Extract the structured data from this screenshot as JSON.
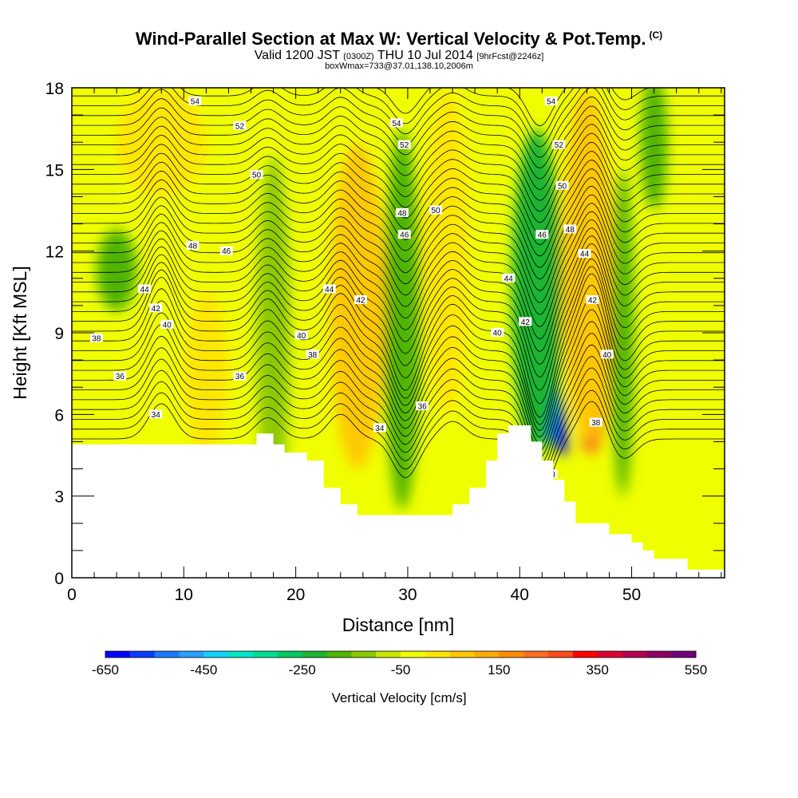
{
  "header": {
    "title": "Wind-Parallel Section at Max W: Vertical Velocity & Pot.Temp.",
    "copyright": "(C)",
    "valid_prefix": "Valid 1200 JST",
    "valid_utc": "(0300Z)",
    "valid_date": "THU 10 Jul 2014",
    "forecast": "[9hrFcst@2246z]",
    "boxinfo": "boxWmax=733@37.01,138.10,2006m"
  },
  "chart_data": {
    "type": "heatmap",
    "xlabel": "Distance [nm]",
    "ylabel": "Height [Kft MSL]",
    "xlim": [
      0,
      58.3
    ],
    "ylim": [
      0,
      18
    ],
    "x_ticks": [
      0,
      10,
      20,
      30,
      40,
      50
    ],
    "y_ticks": [
      0,
      3,
      6,
      9,
      12,
      15,
      18
    ],
    "colorbar": {
      "label": "Vertical Velocity [cm/s]",
      "tick_labels": [
        "-650",
        "-450",
        "-250",
        "-50",
        "150",
        "350",
        "550"
      ],
      "colors": [
        "#0000ff",
        "#0a3cff",
        "#1e78ff",
        "#28a0ff",
        "#14d2ff",
        "#00e6c8",
        "#00dc96",
        "#00c864",
        "#1eb432",
        "#50b400",
        "#8cc800",
        "#c8e600",
        "#f0ff00",
        "#ffe600",
        "#ffc800",
        "#ffaa00",
        "#ff8c00",
        "#ff6e1e",
        "#ff4b1e",
        "#ff0000",
        "#dc0032",
        "#b40050",
        "#8c0064",
        "#6e0078"
      ],
      "range": [
        -650,
        650
      ]
    },
    "terrain": [
      [
        0,
        4.9
      ],
      [
        16.5,
        4.9
      ],
      [
        16.5,
        5.3
      ],
      [
        18,
        5.3
      ],
      [
        18,
        4.9
      ],
      [
        19,
        4.9
      ],
      [
        19,
        4.6
      ],
      [
        21,
        4.6
      ],
      [
        21,
        4.3
      ],
      [
        22.5,
        4.3
      ],
      [
        22.5,
        3.3
      ],
      [
        24,
        3.3
      ],
      [
        24,
        2.7
      ],
      [
        25.5,
        2.7
      ],
      [
        25.5,
        2.3
      ],
      [
        34,
        2.3
      ],
      [
        34,
        2.7
      ],
      [
        35.5,
        2.7
      ],
      [
        35.5,
        3.3
      ],
      [
        37,
        3.3
      ],
      [
        37,
        4.3
      ],
      [
        38,
        4.3
      ],
      [
        38,
        5.3
      ],
      [
        39,
        5.3
      ],
      [
        39,
        5.6
      ],
      [
        41,
        5.6
      ],
      [
        41,
        5.0
      ],
      [
        42,
        5.0
      ],
      [
        42,
        4.3
      ],
      [
        43,
        4.3
      ],
      [
        43,
        3.6
      ],
      [
        44,
        3.6
      ],
      [
        44,
        2.8
      ],
      [
        45,
        2.8
      ],
      [
        45,
        2.0
      ],
      [
        48,
        2.0
      ],
      [
        48,
        1.6
      ],
      [
        50,
        1.6
      ],
      [
        50,
        1.3
      ],
      [
        51,
        1.3
      ],
      [
        51,
        1.0
      ],
      [
        52,
        1.0
      ],
      [
        52,
        0.7
      ],
      [
        55,
        0.7
      ],
      [
        55,
        0.3
      ],
      [
        58.3,
        0.3
      ]
    ],
    "vertical_velocity_features": [
      {
        "x": 42.3,
        "y": 7.2,
        "rx": 1.0,
        "ry": 2.8,
        "value": -620
      },
      {
        "x": 42.0,
        "y": 8.8,
        "rx": 1.6,
        "ry": 4.0,
        "value": -350
      },
      {
        "x": 41.5,
        "y": 10.5,
        "rx": 2.2,
        "ry": 6.0,
        "value": -180
      },
      {
        "x": 46.8,
        "y": 7.2,
        "rx": 0.9,
        "ry": 2.5,
        "value": 460
      },
      {
        "x": 46.5,
        "y": 9.0,
        "rx": 1.4,
        "ry": 4.5,
        "value": 280
      },
      {
        "x": 46.0,
        "y": 11.5,
        "rx": 2.2,
        "ry": 6.5,
        "value": 140
      },
      {
        "x": 49.2,
        "y": 9.0,
        "rx": 1.0,
        "ry": 6.0,
        "value": -160
      },
      {
        "x": 29.5,
        "y": 9.5,
        "rx": 1.6,
        "ry": 7.0,
        "value": -160
      },
      {
        "x": 33.5,
        "y": 12.0,
        "rx": 2.0,
        "ry": 6.0,
        "value": 100
      },
      {
        "x": 25.5,
        "y": 10.0,
        "rx": 2.5,
        "ry": 6.0,
        "value": 110
      },
      {
        "x": 18.0,
        "y": 9.0,
        "rx": 1.5,
        "ry": 6.5,
        "value": -90
      },
      {
        "x": 4.0,
        "y": 11.3,
        "rx": 1.8,
        "ry": 1.5,
        "value": -120
      },
      {
        "x": 12.0,
        "y": 7.5,
        "rx": 2.0,
        "ry": 3.0,
        "value": 90
      },
      {
        "x": 8.0,
        "y": 16.0,
        "rx": 4.0,
        "ry": 2.0,
        "value": 90
      },
      {
        "x": 52.0,
        "y": 16.0,
        "rx": 1.2,
        "ry": 2.5,
        "value": -120
      }
    ],
    "theta_contours": [
      {
        "label": "34",
        "y": 5.4,
        "label_pos": [
          [
            7.5,
            6.0
          ],
          [
            27.5,
            5.5
          ]
        ]
      },
      {
        "label": "36",
        "y": 6.8,
        "label_pos": [
          [
            4.3,
            7.4
          ],
          [
            15.0,
            7.4
          ],
          [
            31.3,
            6.3
          ]
        ]
      },
      {
        "label": "38",
        "y": 8.0,
        "label_pos": [
          [
            2.2,
            8.8
          ],
          [
            21.5,
            8.2
          ],
          [
            42.8,
            3.8
          ],
          [
            46.8,
            5.7
          ]
        ]
      },
      {
        "label": "40",
        "y": 9.0,
        "label_pos": [
          [
            8.5,
            9.3
          ],
          [
            20.5,
            8.9
          ],
          [
            38.0,
            9.0
          ],
          [
            47.8,
            8.2
          ]
        ]
      },
      {
        "label": "42",
        "y": 9.6,
        "label_pos": [
          [
            7.5,
            9.9
          ],
          [
            25.8,
            10.2
          ],
          [
            40.5,
            9.4
          ],
          [
            46.5,
            10.2
          ]
        ]
      },
      {
        "label": "44",
        "y": 10.2,
        "label_pos": [
          [
            6.5,
            10.6
          ],
          [
            23.0,
            10.6
          ],
          [
            39.0,
            11.0
          ],
          [
            45.8,
            11.9
          ]
        ]
      },
      {
        "label": "46",
        "y": 11.2,
        "label_pos": [
          [
            13.8,
            12.0
          ],
          [
            29.7,
            12.6
          ],
          [
            42.0,
            12.6
          ]
        ]
      },
      {
        "label": "48",
        "y": 11.7,
        "label_pos": [
          [
            10.8,
            12.2
          ],
          [
            29.5,
            13.4
          ],
          [
            44.5,
            12.8
          ]
        ]
      },
      {
        "label": "50",
        "y": 14.3,
        "label_pos": [
          [
            16.5,
            14.8
          ],
          [
            32.5,
            13.5
          ],
          [
            43.8,
            14.4
          ]
        ]
      },
      {
        "label": "52",
        "y": 16.0,
        "label_pos": [
          [
            15.0,
            16.6
          ],
          [
            29.7,
            15.9
          ],
          [
            43.5,
            15.9
          ]
        ]
      },
      {
        "label": "54",
        "y": 17.3,
        "label_pos": [
          [
            11.0,
            17.5
          ],
          [
            29.0,
            16.7
          ],
          [
            42.8,
            17.5
          ]
        ]
      }
    ]
  }
}
